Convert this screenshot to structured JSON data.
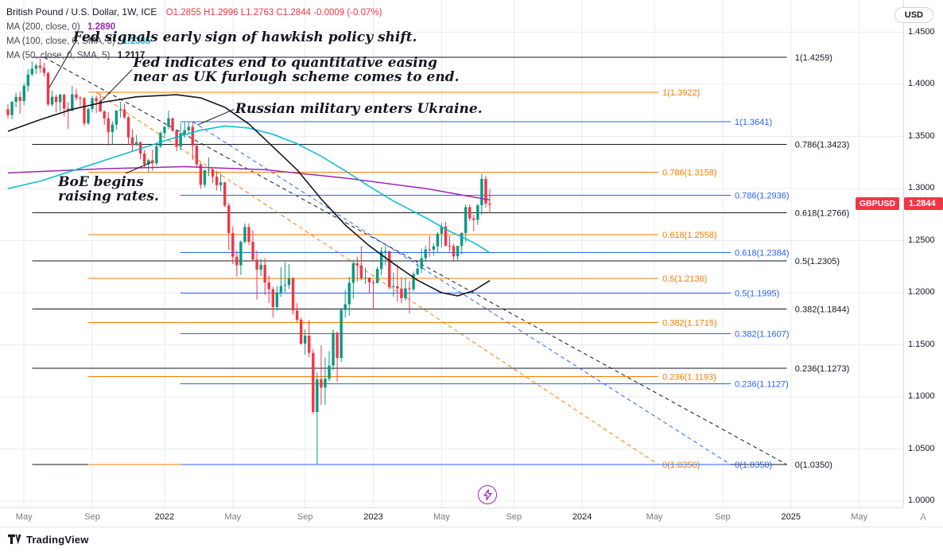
{
  "header": {
    "symbol": "British Pound / U.S. Dollar, 1W, ICE",
    "ohlc": "O1.2855  H1.2996  L1.2763  C1.2844  -0.0009 (-0.07%)",
    "ma_rows": [
      {
        "label": "MA (200, close, 0)",
        "value": "1.2890",
        "color": "#9c27b0"
      },
      {
        "label": "MA (100, close, 0, SMA, 5)",
        "value": "1.2385",
        "color": "#00bcd4"
      },
      {
        "label": "MA (50, close, 0, SMA, 5)",
        "value": "1.2117",
        "color": "#131722"
      }
    ],
    "currency_button": "USD"
  },
  "annotations": [
    {
      "id": "fed-hawkish",
      "lines": [
        "Fed signals early sign of hawkish policy shift."
      ],
      "week": 16.2,
      "price": 1.452,
      "leader": {
        "w1": 16.9,
        "p1": 1.441,
        "w2": 10.3,
        "p2": 1.397
      }
    },
    {
      "id": "fed-qe-end",
      "lines": [
        "Fed indicates end to quantitative easing",
        "near as UK furlough scheme comes to end."
      ],
      "week": 31.2,
      "price": 1.4275,
      "leader": {
        "w1": 30.9,
        "p1": 1.414,
        "w2": 23.0,
        "p2": 1.383
      }
    },
    {
      "id": "ukraine",
      "lines": [
        "Russian military enters Ukraine."
      ],
      "week": 56.6,
      "price": 1.3832,
      "leader": {
        "w1": 56.3,
        "p1": 1.376,
        "w2": 47.2,
        "p2": 1.361
      }
    },
    {
      "id": "boe-hikes",
      "lines": [
        "BoE begins",
        "raising rates."
      ],
      "week": 12.5,
      "price": 1.313,
      "leader": {
        "w1": 29.3,
        "p1": 1.3145,
        "w2": 35.7,
        "p2": 1.3252
      }
    }
  ],
  "price_axis": {
    "ticks": [
      {
        "label": "1.4500",
        "price": 1.45
      },
      {
        "label": "1.4000",
        "price": 1.4
      },
      {
        "label": "1.3500",
        "price": 1.35
      },
      {
        "label": "1.3000",
        "price": 1.3
      },
      {
        "label": "1.2500",
        "price": 1.25
      },
      {
        "label": "1.2000",
        "price": 1.2
      },
      {
        "label": "1.1500",
        "price": 1.15
      },
      {
        "label": "1.1000",
        "price": 1.1
      },
      {
        "label": "1.0500",
        "price": 1.05
      },
      {
        "label": "1.0000",
        "price": 1.0
      }
    ],
    "price_tag": {
      "symbol": "GBPUSD",
      "value": "1.2844",
      "color": "#f23645"
    }
  },
  "time_axis": {
    "ticks": [
      {
        "label": "May",
        "week": 4,
        "major": false
      },
      {
        "label": "Sep",
        "week": 21,
        "major": false
      },
      {
        "label": "2022",
        "week": 39,
        "major": true
      },
      {
        "label": "May",
        "week": 56,
        "major": false
      },
      {
        "label": "Sep",
        "week": 74,
        "major": false
      },
      {
        "label": "2023",
        "week": 91,
        "major": true
      },
      {
        "label": "May",
        "week": 108,
        "major": false
      },
      {
        "label": "Sep",
        "week": 126,
        "major": false
      },
      {
        "label": "2024",
        "week": 143,
        "major": true
      },
      {
        "label": "May",
        "week": 161,
        "major": false
      },
      {
        "label": "Sep",
        "week": 178,
        "major": false
      },
      {
        "label": "2025",
        "week": 195,
        "major": true
      },
      {
        "label": "May",
        "week": 212,
        "major": false
      }
    ],
    "corner": "A"
  },
  "footer": {
    "brand": "TradingView"
  },
  "chart_data": {
    "type": "candlestick",
    "title": "British Pound / U.S. Dollar, 1W, ICE",
    "symbol": "GBPUSD",
    "timeframe": "1W",
    "x_unit": "week",
    "x_start": "Apr 2021",
    "ylim": [
      1.0,
      1.46
    ],
    "last_price": 1.2844,
    "up_color": "#089981",
    "down_color": "#f23645",
    "price_gridlines": [
      1.0,
      1.05,
      1.1,
      1.15,
      1.2,
      1.25,
      1.3,
      1.35,
      1.4,
      1.45
    ],
    "ohlc": [
      [
        1.376,
        1.381,
        1.367,
        1.3705
      ],
      [
        1.3705,
        1.384,
        1.3665,
        1.3832
      ],
      [
        1.3832,
        1.392,
        1.378,
        1.388
      ],
      [
        1.388,
        1.393,
        1.3717,
        1.384
      ],
      [
        1.384,
        1.401,
        1.38,
        1.3985
      ],
      [
        1.3985,
        1.4145,
        1.393,
        1.4095
      ],
      [
        1.4095,
        1.422,
        1.408,
        1.415
      ],
      [
        1.415,
        1.42,
        1.41,
        1.418
      ],
      [
        1.418,
        1.425,
        1.411,
        1.4159
      ],
      [
        1.4159,
        1.4205,
        1.4075,
        1.411
      ],
      [
        1.411,
        1.412,
        1.3791,
        1.3806
      ],
      [
        1.3806,
        1.394,
        1.3787,
        1.388
      ],
      [
        1.388,
        1.39,
        1.373,
        1.383
      ],
      [
        1.383,
        1.391,
        1.374,
        1.39
      ],
      [
        1.39,
        1.391,
        1.369,
        1.3768
      ],
      [
        1.3768,
        1.383,
        1.357,
        1.3748
      ],
      [
        1.3748,
        1.3985,
        1.374,
        1.3904
      ],
      [
        1.3904,
        1.3958,
        1.3845,
        1.387
      ],
      [
        1.387,
        1.389,
        1.379,
        1.3866
      ],
      [
        1.3866,
        1.388,
        1.36,
        1.3625
      ],
      [
        1.3625,
        1.3775,
        1.361,
        1.3762
      ],
      [
        1.3762,
        1.389,
        1.373,
        1.3868
      ],
      [
        1.3868,
        1.3892,
        1.3726,
        1.3838
      ],
      [
        1.3838,
        1.3913,
        1.373,
        1.374
      ],
      [
        1.374,
        1.375,
        1.361,
        1.3673
      ],
      [
        1.3673,
        1.3733,
        1.341,
        1.3541
      ],
      [
        1.3541,
        1.3648,
        1.342,
        1.3614
      ],
      [
        1.3614,
        1.375,
        1.3565,
        1.3749
      ],
      [
        1.3749,
        1.3834,
        1.368,
        1.3755
      ],
      [
        1.3755,
        1.3815,
        1.3668,
        1.3683
      ],
      [
        1.3683,
        1.3698,
        1.3425,
        1.3492
      ],
      [
        1.3492,
        1.357,
        1.3353,
        1.3416
      ],
      [
        1.3416,
        1.3513,
        1.341,
        1.3445
      ],
      [
        1.3445,
        1.345,
        1.3278,
        1.3336
      ],
      [
        1.3336,
        1.3371,
        1.3195,
        1.3233
      ],
      [
        1.3233,
        1.3285,
        1.316,
        1.3272
      ],
      [
        1.3272,
        1.3375,
        1.317,
        1.3242
      ],
      [
        1.3242,
        1.344,
        1.322,
        1.3405
      ],
      [
        1.3405,
        1.355,
        1.339,
        1.3532
      ],
      [
        1.3532,
        1.36,
        1.349,
        1.3592
      ],
      [
        1.3592,
        1.3749,
        1.357,
        1.3674
      ],
      [
        1.3674,
        1.368,
        1.3545,
        1.3554
      ],
      [
        1.3554,
        1.356,
        1.3358,
        1.3401
      ],
      [
        1.3401,
        1.3628,
        1.3365,
        1.3529
      ],
      [
        1.3529,
        1.3645,
        1.3487,
        1.3559
      ],
      [
        1.3559,
        1.3644,
        1.353,
        1.3592
      ],
      [
        1.3592,
        1.3638,
        1.3272,
        1.341
      ],
      [
        1.341,
        1.3437,
        1.32,
        1.3232
      ],
      [
        1.3232,
        1.325,
        1.3,
        1.3036
      ],
      [
        1.3036,
        1.318,
        1.301,
        1.3175
      ],
      [
        1.3175,
        1.3298,
        1.312,
        1.3183
      ],
      [
        1.3183,
        1.319,
        1.305,
        1.3113
      ],
      [
        1.3113,
        1.3165,
        1.2982,
        1.3032
      ],
      [
        1.3032,
        1.3147,
        1.2972,
        1.306
      ],
      [
        1.306,
        1.3064,
        1.2822,
        1.2837
      ],
      [
        1.2837,
        1.286,
        1.241,
        1.2573
      ],
      [
        1.2573,
        1.2637,
        1.2275,
        1.2345
      ],
      [
        1.2345,
        1.2406,
        1.2155,
        1.2263
      ],
      [
        1.2263,
        1.25,
        1.217,
        1.2489
      ],
      [
        1.2489,
        1.2666,
        1.2471,
        1.2631
      ],
      [
        1.2631,
        1.2665,
        1.2458,
        1.2488
      ],
      [
        1.2488,
        1.2599,
        1.23,
        1.2316
      ],
      [
        1.2316,
        1.2405,
        1.1934,
        1.2221
      ],
      [
        1.2221,
        1.2325,
        1.216,
        1.2268
      ],
      [
        1.2268,
        1.2332,
        1.1976,
        1.2098
      ],
      [
        1.2098,
        1.2165,
        1.1899,
        1.2033
      ],
      [
        1.2033,
        1.2056,
        1.176,
        1.1862
      ],
      [
        1.1862,
        1.2065,
        1.1826,
        1.2003
      ],
      [
        1.2003,
        1.2245,
        1.196,
        1.2065
      ],
      [
        1.2065,
        1.2293,
        1.2003,
        1.2074
      ],
      [
        1.2074,
        1.2276,
        1.2035,
        1.2138
      ],
      [
        1.2138,
        1.2149,
        1.179,
        1.1829
      ],
      [
        1.1829,
        1.19,
        1.1717,
        1.1741
      ],
      [
        1.1741,
        1.176,
        1.1499,
        1.1511
      ],
      [
        1.1511,
        1.1647,
        1.1405,
        1.1588
      ],
      [
        1.1588,
        1.1738,
        1.138,
        1.1423
      ],
      [
        1.1423,
        1.146,
        1.0838,
        1.0855
      ],
      [
        1.0855,
        1.1235,
        1.035,
        1.1169
      ],
      [
        1.1169,
        1.1495,
        1.0923,
        1.109
      ],
      [
        1.109,
        1.138,
        1.0925,
        1.1175
      ],
      [
        1.1175,
        1.144,
        1.115,
        1.1301
      ],
      [
        1.1301,
        1.1646,
        1.1255,
        1.1616
      ],
      [
        1.1616,
        1.1626,
        1.1145,
        1.1373
      ],
      [
        1.1373,
        1.1855,
        1.1333,
        1.1835
      ],
      [
        1.1835,
        1.2028,
        1.1762,
        1.1889
      ],
      [
        1.1889,
        1.2153,
        1.178,
        1.2095
      ],
      [
        1.2095,
        1.2311,
        1.1942,
        1.2281
      ],
      [
        1.2281,
        1.2345,
        1.2107,
        1.2262
      ],
      [
        1.2262,
        1.2446,
        1.212,
        1.2139
      ],
      [
        1.2139,
        1.2241,
        1.2085,
        1.2144
      ],
      [
        1.2144,
        1.215,
        1.2,
        1.2099
      ],
      [
        1.2099,
        1.2125,
        1.1841,
        1.2093
      ],
      [
        1.2093,
        1.225,
        1.209,
        1.2228
      ],
      [
        1.2228,
        1.2436,
        1.217,
        1.2398
      ],
      [
        1.2398,
        1.2448,
        1.2263,
        1.24
      ],
      [
        1.24,
        1.2401,
        1.203,
        1.2053
      ],
      [
        1.2053,
        1.2194,
        1.1961,
        1.2062
      ],
      [
        1.2062,
        1.227,
        1.1915,
        1.204
      ],
      [
        1.204,
        1.2148,
        1.1898,
        1.1946
      ],
      [
        1.1946,
        1.2143,
        1.1923,
        1.2042
      ],
      [
        1.2042,
        1.2113,
        1.18,
        1.2033
      ],
      [
        1.2033,
        1.2204,
        1.201,
        1.2178
      ],
      [
        1.2178,
        1.2285,
        1.2168,
        1.2231
      ],
      [
        1.2231,
        1.2425,
        1.219,
        1.2332
      ],
      [
        1.2332,
        1.245,
        1.2296,
        1.2415
      ],
      [
        1.2415,
        1.2546,
        1.2344,
        1.2414
      ],
      [
        1.2414,
        1.2474,
        1.2354,
        1.2445
      ],
      [
        1.2445,
        1.2583,
        1.2386,
        1.2567
      ],
      [
        1.2567,
        1.2668,
        1.2435,
        1.2635
      ],
      [
        1.2635,
        1.268,
        1.2443,
        1.2451
      ],
      [
        1.2451,
        1.2547,
        1.2391,
        1.2446
      ],
      [
        1.2446,
        1.2469,
        1.2308,
        1.2349
      ],
      [
        1.2349,
        1.245,
        1.23,
        1.245
      ],
      [
        1.245,
        1.258,
        1.2368,
        1.2573
      ],
      [
        1.2573,
        1.2848,
        1.2487,
        1.2821
      ],
      [
        1.2821,
        1.2849,
        1.2687,
        1.2713
      ],
      [
        1.2713,
        1.275,
        1.259,
        1.2699
      ],
      [
        1.2699,
        1.2851,
        1.265,
        1.2839
      ],
      [
        1.2839,
        1.3142,
        1.2751,
        1.3092
      ],
      [
        1.3092,
        1.3125,
        1.2815,
        1.2855
      ],
      [
        1.2855,
        1.2996,
        1.2763,
        1.2844
      ]
    ],
    "moving_averages": [
      {
        "name": "MA200",
        "color": "#9c27b0",
        "width": 1.5,
        "points": [
          [
            0,
            1.315
          ],
          [
            24,
            1.319
          ],
          [
            44,
            1.321
          ],
          [
            64,
            1.318
          ],
          [
            84,
            1.31
          ],
          [
            104,
            1.3
          ],
          [
            120,
            1.289
          ]
        ]
      },
      {
        "name": "MA100",
        "color": "#00bcd4",
        "width": 1.5,
        "points": [
          [
            0,
            1.3
          ],
          [
            8,
            1.307
          ],
          [
            16,
            1.317
          ],
          [
            24,
            1.327
          ],
          [
            32,
            1.337
          ],
          [
            40,
            1.347
          ],
          [
            48,
            1.356
          ],
          [
            54,
            1.36
          ],
          [
            60,
            1.358
          ],
          [
            66,
            1.352
          ],
          [
            72,
            1.343
          ],
          [
            78,
            1.331
          ],
          [
            84,
            1.317
          ],
          [
            90,
            1.302
          ],
          [
            96,
            1.288
          ],
          [
            104,
            1.272
          ],
          [
            110,
            1.259
          ],
          [
            116,
            1.248
          ],
          [
            120,
            1.2385
          ]
        ]
      },
      {
        "name": "MA50",
        "color": "#131722",
        "width": 1.6,
        "points": [
          [
            0,
            1.355
          ],
          [
            8,
            1.366
          ],
          [
            16,
            1.376
          ],
          [
            24,
            1.383
          ],
          [
            32,
            1.388
          ],
          [
            42,
            1.39
          ],
          [
            48,
            1.387
          ],
          [
            54,
            1.378
          ],
          [
            60,
            1.362
          ],
          [
            66,
            1.34
          ],
          [
            72,
            1.318
          ],
          [
            78,
            1.29
          ],
          [
            84,
            1.265
          ],
          [
            90,
            1.245
          ],
          [
            96,
            1.228
          ],
          [
            102,
            1.212
          ],
          [
            108,
            1.2
          ],
          [
            112,
            1.197
          ],
          [
            116,
            1.202
          ],
          [
            120,
            1.2117
          ]
        ]
      }
    ],
    "fibonacci_sets": [
      {
        "name": "fib-black",
        "color": "#131722",
        "line_start_week": 6,
        "line_end_week": 194,
        "label_week": 196,
        "levels": [
          {
            "label": "1(1.4259)",
            "price": 1.4259
          },
          {
            "label": "0.786(1.3423)",
            "price": 1.3423
          },
          {
            "label": "0.618(1.2766)",
            "price": 1.2766
          },
          {
            "label": "0.5(1.2305)",
            "price": 1.2305
          },
          {
            "label": "0.382(1.1844)",
            "price": 1.1844
          },
          {
            "label": "0.236(1.1273)",
            "price": 1.1273
          },
          {
            "label": "0(1.0350)",
            "price": 1.035
          }
        ],
        "trendline": {
          "w1": 9,
          "p1": 1.4259,
          "w2": 194,
          "p2": 1.035
        }
      },
      {
        "name": "fib-orange",
        "color": "#f57c00",
        "line_start_week": 20,
        "line_end_week": 162,
        "label_week": 163,
        "levels": [
          {
            "label": "1(1.3922)",
            "price": 1.3922
          },
          {
            "label": "0.786(1.3158)",
            "price": 1.3158
          },
          {
            "label": "0.618(1.2558)",
            "price": 1.2558
          },
          {
            "label": "0.5(1.2136)",
            "price": 1.2136
          },
          {
            "label": "0.382(1.1715)",
            "price": 1.1715
          },
          {
            "label": "0.236(1.1193)",
            "price": 1.1193
          },
          {
            "label": "0(1.0350)",
            "price": 1.035
          }
        ],
        "trendline": {
          "w1": 22,
          "p1": 1.3922,
          "w2": 162,
          "p2": 1.035
        }
      },
      {
        "name": "fib-blue",
        "color": "#2962ff",
        "line_start_week": 43,
        "line_end_week": 180,
        "label_week": 181,
        "levels": [
          {
            "label": "1(1.3641)",
            "price": 1.3641
          },
          {
            "label": "0.786(1.2936)",
            "price": 1.2936
          },
          {
            "label": "0.618(1.2384)",
            "price": 1.2384
          },
          {
            "label": "0.5(1.1995)",
            "price": 1.1995
          },
          {
            "label": "0.382(1.1607)",
            "price": 1.1607
          },
          {
            "label": "0.236(1.1127)",
            "price": 1.1127
          },
          {
            "label": "0(1.0350)",
            "price": 1.035
          }
        ],
        "trendline": {
          "w1": 46,
          "p1": 1.3641,
          "w2": 180,
          "p2": 1.035
        }
      }
    ]
  }
}
